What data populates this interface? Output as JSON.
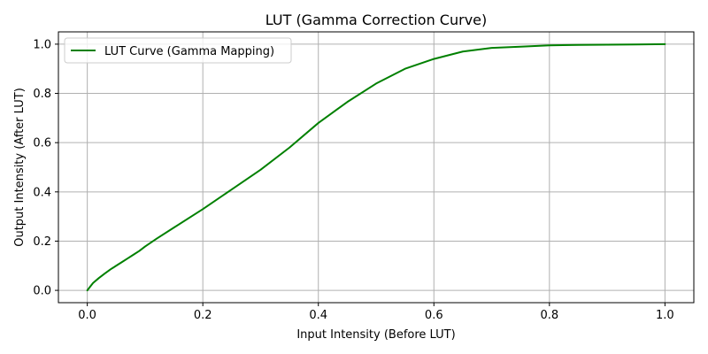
{
  "chart_data": {
    "type": "line",
    "title": "LUT (Gamma Correction Curve)",
    "xlabel": "Input Intensity (Before LUT)",
    "ylabel": "Output Intensity (After LUT)",
    "xlim": [
      -0.05,
      1.05
    ],
    "ylim": [
      -0.05,
      1.05
    ],
    "xticks": [
      0.0,
      0.2,
      0.4,
      0.6,
      0.8,
      1.0
    ],
    "yticks": [
      0.0,
      0.2,
      0.4,
      0.6,
      0.8,
      1.0
    ],
    "xtick_labels": [
      "0.0",
      "0.2",
      "0.4",
      "0.6",
      "0.8",
      "1.0"
    ],
    "ytick_labels": [
      "0.0",
      "0.2",
      "0.4",
      "0.6",
      "0.8",
      "1.0"
    ],
    "grid": true,
    "legend_position": "top-left",
    "series": [
      {
        "name": "LUT Curve (Gamma Mapping)",
        "color": "#008000",
        "x": [
          0.0,
          0.005,
          0.01,
          0.02,
          0.03,
          0.04,
          0.05,
          0.06,
          0.07,
          0.08,
          0.09,
          0.1,
          0.12,
          0.15,
          0.2,
          0.25,
          0.3,
          0.35,
          0.4,
          0.45,
          0.5,
          0.55,
          0.6,
          0.65,
          0.7,
          0.75,
          0.8,
          0.85,
          0.9,
          0.95,
          1.0
        ],
        "y": [
          0.0,
          0.015,
          0.03,
          0.05,
          0.068,
          0.085,
          0.1,
          0.115,
          0.13,
          0.145,
          0.16,
          0.178,
          0.21,
          0.255,
          0.33,
          0.41,
          0.49,
          0.58,
          0.68,
          0.765,
          0.84,
          0.9,
          0.94,
          0.97,
          0.985,
          0.99,
          0.995,
          0.997,
          0.998,
          0.999,
          1.0
        ]
      }
    ]
  }
}
